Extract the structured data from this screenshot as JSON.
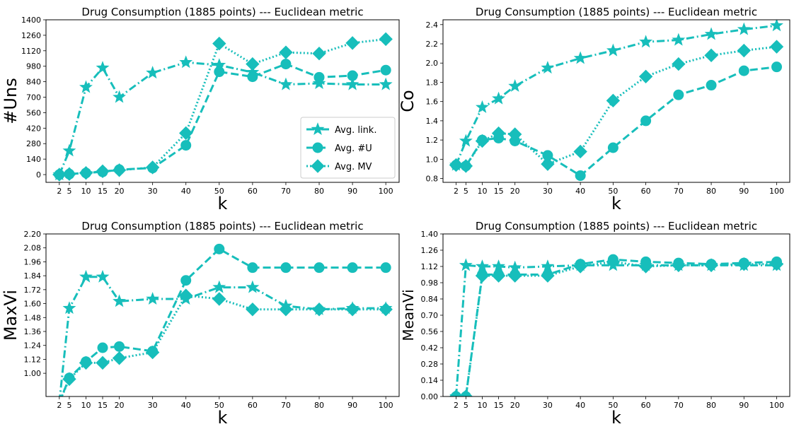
{
  "series_color": "#17BEBB",
  "chart_data": [
    {
      "type": "line",
      "title": "Drug Consumption (1885 points) --- Euclidean metric",
      "xlabel": "k",
      "ylabel": "#Uns",
      "x": [
        2,
        5,
        10,
        15,
        20,
        30,
        40,
        50,
        60,
        70,
        80,
        90,
        100
      ],
      "xticks": [
        "2",
        "5",
        "10",
        "15",
        "20",
        "30",
        "40",
        "50",
        "60",
        "70",
        "80",
        "90",
        "100"
      ],
      "xlim": [
        -2,
        104
      ],
      "ylim": [
        -70,
        1400
      ],
      "yticks": [
        "0",
        "140",
        "280",
        "420",
        "560",
        "700",
        "840",
        "980",
        "1120",
        "1260",
        "1400"
      ],
      "grid": false,
      "legend": "bottom-right",
      "series": [
        {
          "name": "Avg. link.",
          "marker": "star",
          "dash": "dashdot",
          "values": [
            0,
            215,
            790,
            965,
            700,
            920,
            1015,
            990,
            925,
            815,
            825,
            815,
            815
          ]
        },
        {
          "name": "Avg. #U",
          "marker": "circle",
          "dash": "dashed",
          "values": [
            0,
            5,
            15,
            25,
            45,
            60,
            265,
            930,
            885,
            1000,
            880,
            895,
            945
          ]
        },
        {
          "name": "Avg. MV",
          "marker": "diamond",
          "dash": "dotted",
          "values": [
            0,
            5,
            15,
            30,
            40,
            65,
            375,
            1185,
            1000,
            1105,
            1095,
            1190,
            1225
          ]
        }
      ]
    },
    {
      "type": "line",
      "title": "Drug Consumption (1885 points) --- Euclidean metric",
      "xlabel": "k",
      "ylabel": "Co",
      "x": [
        2,
        5,
        10,
        15,
        20,
        30,
        40,
        50,
        60,
        70,
        80,
        90,
        100
      ],
      "xticks": [
        "2",
        "5",
        "10",
        "15",
        "20",
        "30",
        "40",
        "50",
        "60",
        "70",
        "80",
        "90",
        "100"
      ],
      "xlim": [
        -2,
        104
      ],
      "ylim": [
        0.76,
        2.45
      ],
      "yticks": [
        "0.8",
        "1.0",
        "1.2",
        "1.4",
        "1.6",
        "1.8",
        "2.0",
        "2.2",
        "2.4"
      ],
      "grid": false,
      "series": [
        {
          "name": "Avg. link.",
          "marker": "star",
          "dash": "dashdot",
          "values": [
            0.94,
            1.19,
            1.54,
            1.63,
            1.76,
            1.95,
            2.05,
            2.13,
            2.22,
            2.24,
            2.3,
            2.35,
            2.39
          ]
        },
        {
          "name": "Avg. #U",
          "marker": "circle",
          "dash": "dashed",
          "values": [
            0.94,
            0.93,
            1.2,
            1.22,
            1.19,
            1.04,
            0.83,
            1.12,
            1.4,
            1.67,
            1.77,
            1.92,
            1.96
          ]
        },
        {
          "name": "Avg. MV",
          "marker": "diamond",
          "dash": "dotted",
          "values": [
            0.94,
            0.93,
            1.19,
            1.27,
            1.26,
            0.95,
            1.08,
            1.61,
            1.86,
            1.99,
            2.08,
            2.13,
            2.17
          ]
        }
      ]
    },
    {
      "type": "line",
      "title": "Drug Consumption (1885 points) --- Euclidean metric",
      "xlabel": "k",
      "ylabel": "MaxVi",
      "x": [
        2,
        5,
        10,
        15,
        20,
        30,
        40,
        50,
        60,
        70,
        80,
        90,
        100
      ],
      "xticks": [
        "2",
        "5",
        "10",
        "15",
        "20",
        "30",
        "40",
        "50",
        "60",
        "70",
        "80",
        "90",
        "100"
      ],
      "xlim": [
        -2,
        104
      ],
      "ylim": [
        0.8,
        2.2
      ],
      "yticks": [
        "1.00",
        "1.12",
        "1.24",
        "1.36",
        "1.48",
        "1.60",
        "1.72",
        "1.84",
        "1.96",
        "2.08",
        "2.20"
      ],
      "grid": false,
      "series": [
        {
          "name": "Avg. link.",
          "marker": "star",
          "dash": "dashdot",
          "values": [
            0.75,
            1.56,
            1.83,
            1.83,
            1.62,
            1.64,
            1.64,
            1.74,
            1.74,
            1.58,
            1.55,
            1.56,
            1.56
          ]
        },
        {
          "name": "Avg. #U",
          "marker": "circle",
          "dash": "dashed",
          "values": [
            0.75,
            0.96,
            1.1,
            1.22,
            1.23,
            1.19,
            1.8,
            2.07,
            1.91,
            1.91,
            1.91,
            1.91,
            1.91
          ]
        },
        {
          "name": "Avg. MV",
          "marker": "diamond",
          "dash": "dotted",
          "values": [
            0.75,
            0.95,
            1.09,
            1.09,
            1.13,
            1.18,
            1.67,
            1.64,
            1.55,
            1.55,
            1.55,
            1.55,
            1.55
          ]
        }
      ]
    },
    {
      "type": "line",
      "title": "Drug Consumption (1885 points) --- Euclidean metric",
      "xlabel": "k",
      "ylabel": "MeanVi",
      "x": [
        2,
        5,
        10,
        15,
        20,
        30,
        40,
        50,
        60,
        70,
        80,
        90,
        100
      ],
      "xticks": [
        "2",
        "5",
        "10",
        "15",
        "20",
        "30",
        "40",
        "50",
        "60",
        "70",
        "80",
        "90",
        "100"
      ],
      "xlim": [
        -2,
        104
      ],
      "ylim": [
        0.0,
        1.4
      ],
      "yticks": [
        "0.00",
        "0.14",
        "0.28",
        "0.42",
        "0.56",
        "0.70",
        "0.84",
        "0.98",
        "1.12",
        "1.26",
        "1.40"
      ],
      "grid": false,
      "series": [
        {
          "name": "Avg. link.",
          "marker": "star",
          "dash": "dashdot",
          "values": [
            0.0,
            1.13,
            1.12,
            1.12,
            1.11,
            1.12,
            1.13,
            1.13,
            1.13,
            1.13,
            1.13,
            1.13,
            1.13
          ]
        },
        {
          "name": "Avg. #U",
          "marker": "circle",
          "dash": "dashed",
          "values": [
            0.0,
            0.0,
            1.05,
            1.05,
            1.05,
            1.05,
            1.14,
            1.18,
            1.16,
            1.15,
            1.14,
            1.15,
            1.16
          ]
        },
        {
          "name": "Avg. MV",
          "marker": "diamond",
          "dash": "dotted",
          "values": [
            0.0,
            0.0,
            1.04,
            1.04,
            1.04,
            1.04,
            1.12,
            1.16,
            1.12,
            1.13,
            1.13,
            1.14,
            1.14
          ]
        }
      ]
    }
  ]
}
